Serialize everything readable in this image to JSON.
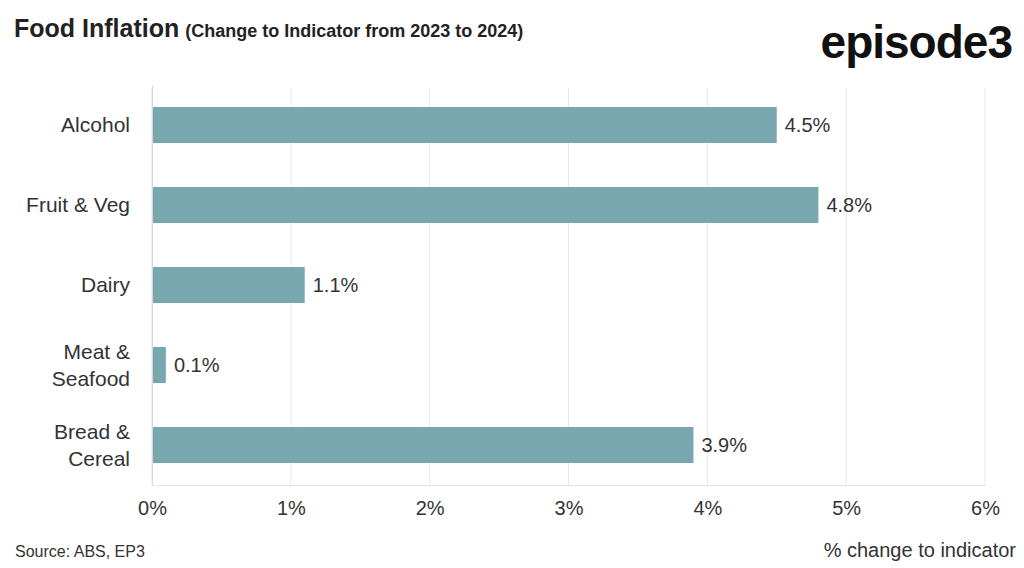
{
  "chart_data": {
    "type": "bar",
    "orientation": "horizontal",
    "title": "Food Inflation",
    "subtitle": "(Change to Indicator from 2023 to 2024)",
    "brand": "episode3",
    "source": "Source: ABS, EP3",
    "x_label": "% change to indicator",
    "categories": [
      "Alcohol",
      "Fruit & Veg",
      "Dairy",
      "Meat &\nSeafood",
      "Bread &\nCereal"
    ],
    "values": [
      4.5,
      4.8,
      1.1,
      0.1,
      3.9
    ],
    "value_labels": [
      "4.5%",
      "4.8%",
      "1.1%",
      "0.1%",
      "3.9%"
    ],
    "data_labels": true,
    "color": "#79a7b0",
    "xlim": [
      0,
      6
    ],
    "xticks": [
      {
        "value": 0,
        "label": "0%"
      },
      {
        "value": 1,
        "label": "1%"
      },
      {
        "value": 2,
        "label": "2%"
      },
      {
        "value": 3,
        "label": "3%"
      },
      {
        "value": 4,
        "label": "4%"
      },
      {
        "value": 5,
        "label": "5%"
      },
      {
        "value": 6,
        "label": "6%"
      }
    ],
    "grid": true
  }
}
